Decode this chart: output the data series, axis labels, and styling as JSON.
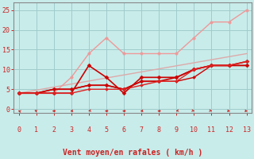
{
  "background_color": "#c8ecea",
  "grid_color": "#a0cccc",
  "xlabel": "Vent moyen/en rafales ( km/h )",
  "xlim": [
    -0.3,
    13.3
  ],
  "ylim": [
    -1,
    27
  ],
  "xticks": [
    0,
    1,
    2,
    3,
    4,
    5,
    6,
    7,
    8,
    9,
    10,
    11,
    12,
    13
  ],
  "yticks": [
    0,
    5,
    10,
    15,
    20,
    25
  ],
  "series": [
    {
      "x": [
        0,
        2,
        3,
        4,
        5,
        6,
        7,
        8,
        9,
        10,
        11,
        12,
        13
      ],
      "y": [
        4,
        4,
        8,
        14,
        18,
        14,
        14,
        14,
        14,
        18,
        22,
        22,
        25
      ],
      "color": "#ee9999",
      "linewidth": 1.0,
      "marker": "o",
      "markersize": 2.5
    },
    {
      "x": [
        0,
        13
      ],
      "y": [
        4,
        14
      ],
      "color": "#ddaaaa",
      "linewidth": 1.0,
      "marker": null,
      "markersize": 0
    },
    {
      "x": [
        0,
        1,
        2,
        3,
        4,
        5,
        6,
        7,
        8,
        9,
        10,
        11,
        12,
        13
      ],
      "y": [
        4,
        4,
        4,
        4,
        11,
        8,
        4,
        8,
        8,
        8,
        10,
        11,
        11,
        11
      ],
      "color": "#cc0000",
      "linewidth": 1.2,
      "marker": "D",
      "markersize": 2.5
    },
    {
      "x": [
        0,
        1,
        2,
        3,
        4,
        5,
        6,
        7,
        8,
        9,
        10,
        11,
        12,
        13
      ],
      "y": [
        4,
        4,
        5,
        5,
        6,
        6,
        5,
        7,
        7,
        8,
        10,
        11,
        11,
        12
      ],
      "color": "#cc0000",
      "linewidth": 1.2,
      "marker": "D",
      "markersize": 2.5
    },
    {
      "x": [
        0,
        1,
        2,
        3,
        4,
        5,
        6,
        7,
        8,
        9,
        10,
        11,
        12,
        13
      ],
      "y": [
        4,
        4,
        5,
        5,
        6,
        6,
        5,
        7,
        7,
        7,
        8,
        11,
        11,
        11
      ],
      "color": "#cc0000",
      "linewidth": 1.0,
      "marker": "D",
      "markersize": 2.0
    },
    {
      "x": [
        0,
        1,
        2,
        3,
        4,
        5,
        6,
        7,
        8,
        9,
        10,
        11,
        12,
        13
      ],
      "y": [
        4,
        4,
        4,
        4,
        5,
        5,
        5,
        6,
        7,
        7,
        10,
        11,
        11,
        12
      ],
      "color": "#dd2222",
      "linewidth": 1.0,
      "marker": "D",
      "markersize": 2.0
    }
  ],
  "arrow_angles": [
    225,
    210,
    270,
    300,
    315,
    270,
    270,
    300,
    270,
    315,
    45,
    45,
    60,
    60
  ],
  "arrow_color": "#cc2222",
  "tick_color": "#cc2222",
  "label_color": "#cc2222",
  "axis_color": "#888888",
  "tick_fontsize": 6,
  "label_fontsize": 7
}
